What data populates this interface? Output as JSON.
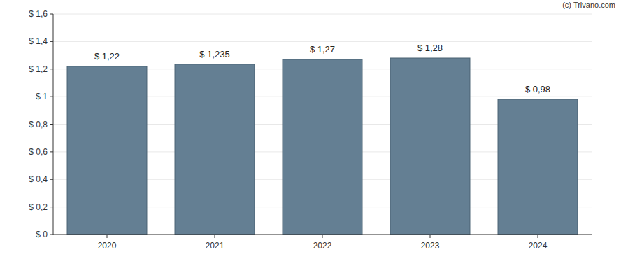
{
  "chart_data": {
    "type": "bar",
    "annotation": "(c) Trivano.com",
    "categories": [
      "2020",
      "2021",
      "2022",
      "2023",
      "2024"
    ],
    "values": [
      1.22,
      1.235,
      1.27,
      1.28,
      0.98
    ],
    "value_labels": [
      "$ 1,22",
      "$ 1,235",
      "$ 1,27",
      "$ 1,28",
      "$ 0,98"
    ],
    "data_labels": true,
    "color": "#647f93",
    "ylim": [
      0,
      1.6
    ],
    "yticks": [
      {
        "value": 0,
        "label": "$ 0"
      },
      {
        "value": 0.2,
        "label": "$ 0,2"
      },
      {
        "value": 0.4,
        "label": "$ 0,4"
      },
      {
        "value": 0.6,
        "label": "$ 0,6"
      },
      {
        "value": 0.8,
        "label": "$ 0,8"
      },
      {
        "value": 1,
        "label": "$ 1"
      },
      {
        "value": 1.2,
        "label": "$ 1,2"
      },
      {
        "value": 1.4,
        "label": "$ 1,4"
      },
      {
        "value": 1.6,
        "label": "$ 1,6"
      }
    ],
    "grid": true
  }
}
